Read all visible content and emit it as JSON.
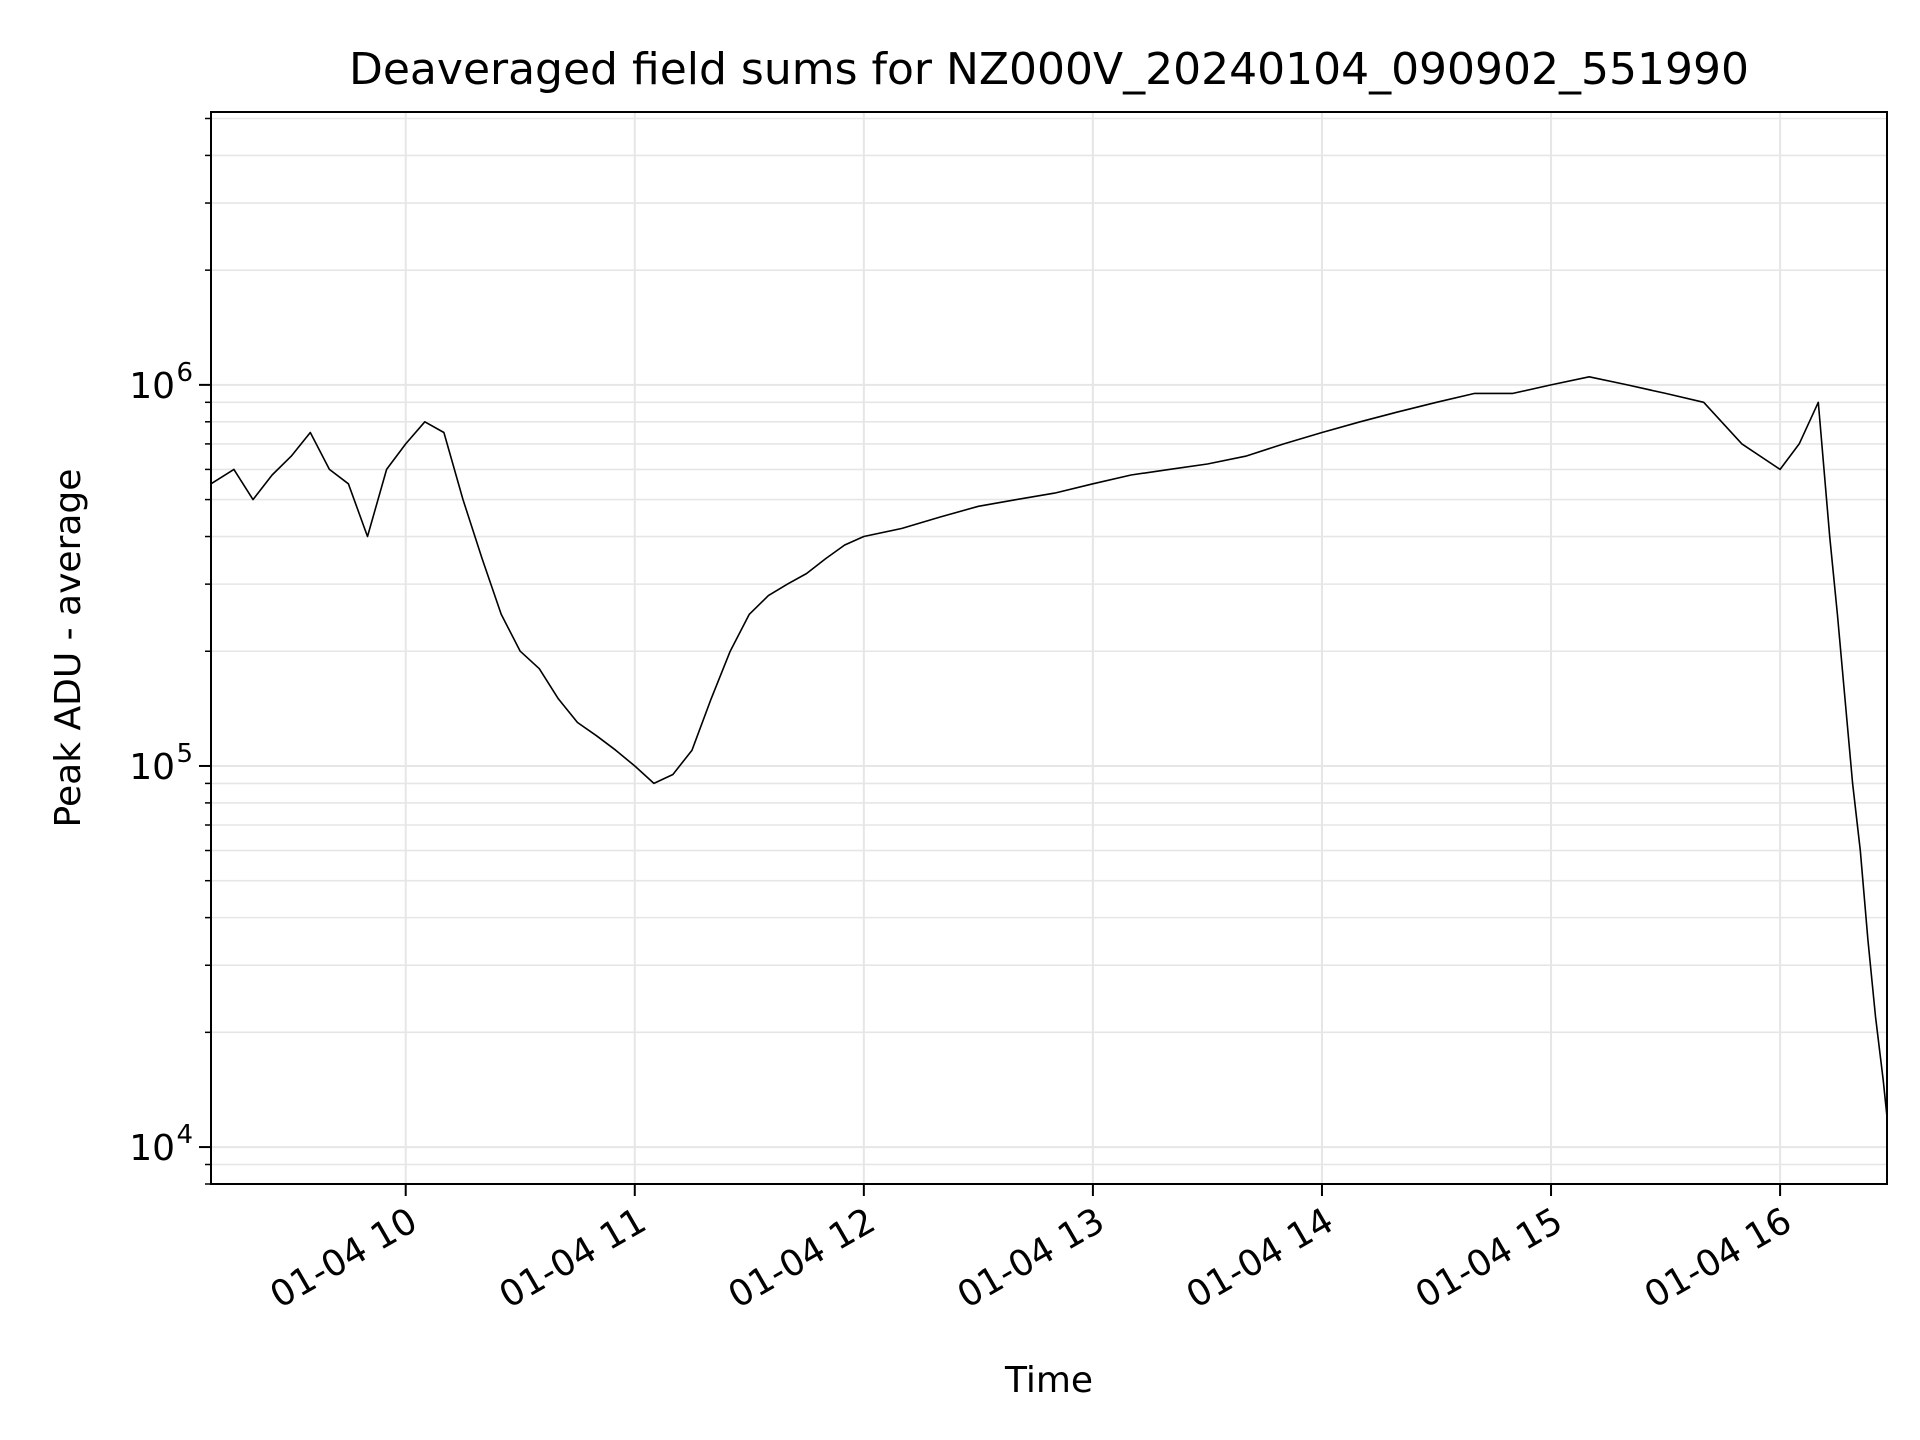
{
  "chart_data": {
    "type": "line",
    "title": "Deaveraged field sums for NZ000V_20240104_090902_551990",
    "xlabel": "Time",
    "ylabel": "Peak ADU - average",
    "yscale": "log",
    "ylim": [
      8000,
      5200000
    ],
    "xlim": [
      "2024-01-04 09:09",
      "2024-01-04 16:28"
    ],
    "x_ticks": [
      {
        "t": "2024-01-04 10:00",
        "label": "01-04 10"
      },
      {
        "t": "2024-01-04 11:00",
        "label": "01-04 11"
      },
      {
        "t": "2024-01-04 12:00",
        "label": "01-04 12"
      },
      {
        "t": "2024-01-04 13:00",
        "label": "01-04 13"
      },
      {
        "t": "2024-01-04 14:00",
        "label": "01-04 14"
      },
      {
        "t": "2024-01-04 15:00",
        "label": "01-04 15"
      },
      {
        "t": "2024-01-04 16:00",
        "label": "01-04 16"
      }
    ],
    "y_ticks": [
      {
        "value": 10000,
        "base": "10",
        "exp": "4"
      },
      {
        "value": 100000,
        "base": "10",
        "exp": "5"
      },
      {
        "value": 1000000,
        "base": "10",
        "exp": "6"
      }
    ],
    "grid": true,
    "line_color": "#000000",
    "series": [
      {
        "x": [
          "2024-01-04 09:09",
          "2024-01-04 09:15",
          "2024-01-04 09:20",
          "2024-01-04 09:25",
          "2024-01-04 09:30",
          "2024-01-04 09:35",
          "2024-01-04 09:40",
          "2024-01-04 09:45",
          "2024-01-04 09:50",
          "2024-01-04 09:55",
          "2024-01-04 10:00",
          "2024-01-04 10:05",
          "2024-01-04 10:10",
          "2024-01-04 10:15",
          "2024-01-04 10:20",
          "2024-01-04 10:25",
          "2024-01-04 10:30",
          "2024-01-04 10:35",
          "2024-01-04 10:40",
          "2024-01-04 10:45",
          "2024-01-04 10:50",
          "2024-01-04 10:55",
          "2024-01-04 11:00",
          "2024-01-04 11:05",
          "2024-01-04 11:10",
          "2024-01-04 11:15",
          "2024-01-04 11:20",
          "2024-01-04 11:25",
          "2024-01-04 11:30",
          "2024-01-04 11:35",
          "2024-01-04 11:40",
          "2024-01-04 11:45",
          "2024-01-04 11:50",
          "2024-01-04 11:55",
          "2024-01-04 12:00",
          "2024-01-04 12:10",
          "2024-01-04 12:20",
          "2024-01-04 12:30",
          "2024-01-04 12:40",
          "2024-01-04 12:50",
          "2024-01-04 13:00",
          "2024-01-04 13:10",
          "2024-01-04 13:20",
          "2024-01-04 13:30",
          "2024-01-04 13:40",
          "2024-01-04 13:50",
          "2024-01-04 14:00",
          "2024-01-04 14:10",
          "2024-01-04 14:20",
          "2024-01-04 14:30",
          "2024-01-04 14:40",
          "2024-01-04 14:50",
          "2024-01-04 15:00",
          "2024-01-04 15:10",
          "2024-01-04 15:20",
          "2024-01-04 15:30",
          "2024-01-04 15:40",
          "2024-01-04 15:50",
          "2024-01-04 16:00",
          "2024-01-04 16:05",
          "2024-01-04 16:10",
          "2024-01-04 16:13",
          "2024-01-04 16:15",
          "2024-01-04 16:17",
          "2024-01-04 16:19",
          "2024-01-04 16:21",
          "2024-01-04 16:23",
          "2024-01-04 16:25",
          "2024-01-04 16:27",
          "2024-01-04 16:28"
        ],
        "y": [
          550000,
          600000,
          500000,
          580000,
          650000,
          750000,
          600000,
          550000,
          400000,
          600000,
          700000,
          800000,
          750000,
          500000,
          350000,
          250000,
          200000,
          180000,
          150000,
          130000,
          120000,
          110000,
          100000,
          90000,
          95000,
          110000,
          150000,
          200000,
          250000,
          280000,
          300000,
          320000,
          350000,
          380000,
          400000,
          420000,
          450000,
          480000,
          500000,
          520000,
          550000,
          580000,
          600000,
          620000,
          650000,
          700000,
          750000,
          800000,
          850000,
          900000,
          950000,
          950000,
          1000000,
          1050000,
          1000000,
          950000,
          900000,
          700000,
          600000,
          700000,
          900000,
          400000,
          250000,
          150000,
          90000,
          60000,
          35000,
          22000,
          15000,
          12000
        ]
      }
    ]
  }
}
